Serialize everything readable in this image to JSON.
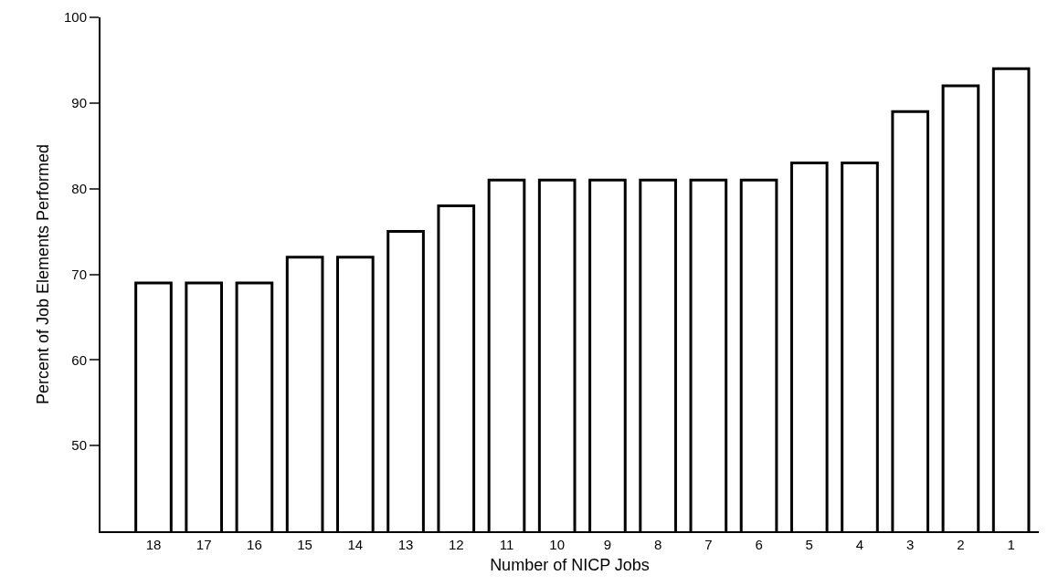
{
  "chart_data": {
    "type": "bar",
    "xlabel": "Number of NICP Jobs",
    "ylabel": "Percent of Job Elements Performed",
    "categories": [
      "18",
      "17",
      "16",
      "15",
      "14",
      "13",
      "12",
      "11",
      "10",
      "9",
      "8",
      "7",
      "6",
      "5",
      "4",
      "3",
      "2",
      "1"
    ],
    "values": [
      69,
      69,
      69,
      72,
      72,
      75,
      78,
      81,
      81,
      81,
      81,
      81,
      81,
      83,
      83,
      89,
      92,
      94
    ],
    "color": "#ffffff",
    "ylim": [
      40,
      100
    ],
    "yticks": [
      50,
      60,
      70,
      80,
      90,
      100
    ]
  }
}
